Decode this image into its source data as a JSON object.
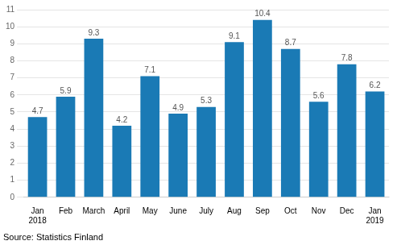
{
  "chart_data": {
    "type": "bar",
    "categories": [
      "Jan\n2018",
      "Feb",
      "March",
      "April",
      "May",
      "June",
      "July",
      "Aug",
      "Sep",
      "Oct",
      "Nov",
      "Dec",
      "Jan\n2019"
    ],
    "values": [
      4.7,
      5.9,
      9.3,
      4.2,
      7.1,
      4.9,
      5.3,
      9.1,
      10.4,
      8.7,
      5.6,
      7.8,
      6.2
    ],
    "color": "#1a7ab5",
    "ylim": [
      0,
      11
    ],
    "yticks": [
      0,
      1,
      2,
      3,
      4,
      5,
      6,
      7,
      8,
      9,
      10,
      11
    ],
    "grid": true,
    "data_labels": true,
    "source": "Source: Statistics Finland"
  }
}
